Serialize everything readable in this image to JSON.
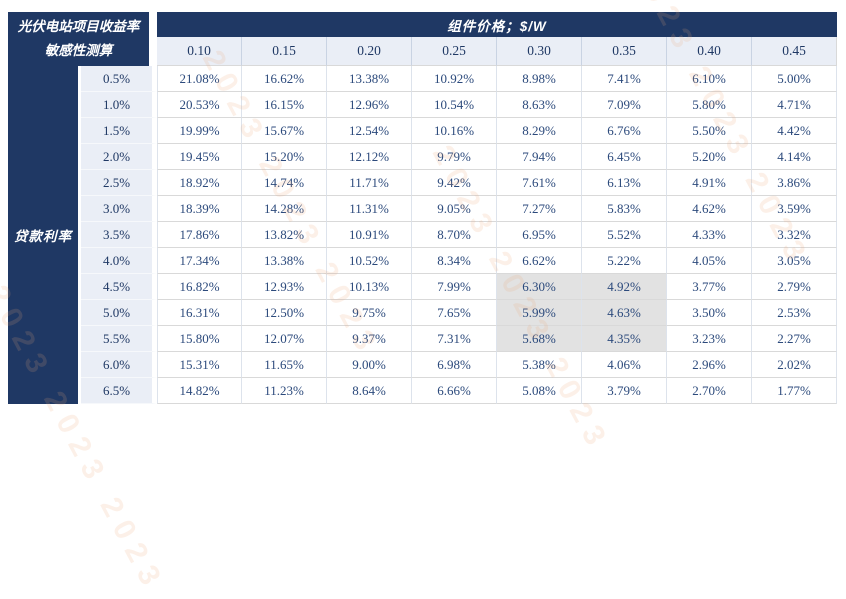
{
  "colors": {
    "navy": "#1f3864",
    "header_bg": "#eaeef6",
    "header_text": "#1f3864",
    "data_text": "#2c4a7c",
    "highlight_bg": "#e2e2e2",
    "grid_line": "#d9d9d9",
    "watermark": "#eda878"
  },
  "table": {
    "corner_title": {
      "line1": "光伏电站项目收益率",
      "line2": "敏感性测算"
    },
    "col_group_title": "组件价格；$/W",
    "row_group_title": "贷款利率",
    "col_headers": [
      "0.10",
      "0.15",
      "0.20",
      "0.25",
      "0.30",
      "0.35",
      "0.40",
      "0.45"
    ],
    "row_headers": [
      "0.5%",
      "1.0%",
      "1.5%",
      "2.0%",
      "2.5%",
      "3.0%",
      "3.5%",
      "4.0%",
      "4.5%",
      "5.0%",
      "5.5%",
      "6.0%",
      "6.5%"
    ],
    "rows": [
      [
        "21.08%",
        "16.62%",
        "13.38%",
        "10.92%",
        "8.98%",
        "7.41%",
        "6.10%",
        "5.00%"
      ],
      [
        "20.53%",
        "16.15%",
        "12.96%",
        "10.54%",
        "8.63%",
        "7.09%",
        "5.80%",
        "4.71%"
      ],
      [
        "19.99%",
        "15.67%",
        "12.54%",
        "10.16%",
        "8.29%",
        "6.76%",
        "5.50%",
        "4.42%"
      ],
      [
        "19.45%",
        "15.20%",
        "12.12%",
        "9.79%",
        "7.94%",
        "6.45%",
        "5.20%",
        "4.14%"
      ],
      [
        "18.92%",
        "14.74%",
        "11.71%",
        "9.42%",
        "7.61%",
        "6.13%",
        "4.91%",
        "3.86%"
      ],
      [
        "18.39%",
        "14.28%",
        "11.31%",
        "9.05%",
        "7.27%",
        "5.83%",
        "4.62%",
        "3.59%"
      ],
      [
        "17.86%",
        "13.82%",
        "10.91%",
        "8.70%",
        "6.95%",
        "5.52%",
        "4.33%",
        "3.32%"
      ],
      [
        "17.34%",
        "13.38%",
        "10.52%",
        "8.34%",
        "6.62%",
        "5.22%",
        "4.05%",
        "3.05%"
      ],
      [
        "16.82%",
        "12.93%",
        "10.13%",
        "7.99%",
        "6.30%",
        "4.92%",
        "3.77%",
        "2.79%"
      ],
      [
        "16.31%",
        "12.50%",
        "9.75%",
        "7.65%",
        "5.99%",
        "4.63%",
        "3.50%",
        "2.53%"
      ],
      [
        "15.80%",
        "12.07%",
        "9.37%",
        "7.31%",
        "5.68%",
        "4.35%",
        "3.23%",
        "2.27%"
      ],
      [
        "15.31%",
        "11.65%",
        "9.00%",
        "6.98%",
        "5.38%",
        "4.06%",
        "2.96%",
        "2.02%"
      ],
      [
        "14.82%",
        "11.23%",
        "8.64%",
        "6.66%",
        "5.08%",
        "3.79%",
        "2.70%",
        "1.77%"
      ]
    ],
    "highlighted_cells": [
      [
        8,
        4
      ],
      [
        8,
        5
      ],
      [
        9,
        4
      ],
      [
        9,
        5
      ],
      [
        10,
        4
      ],
      [
        10,
        5
      ]
    ]
  },
  "watermark": {
    "text": "2023 2023 2023"
  }
}
